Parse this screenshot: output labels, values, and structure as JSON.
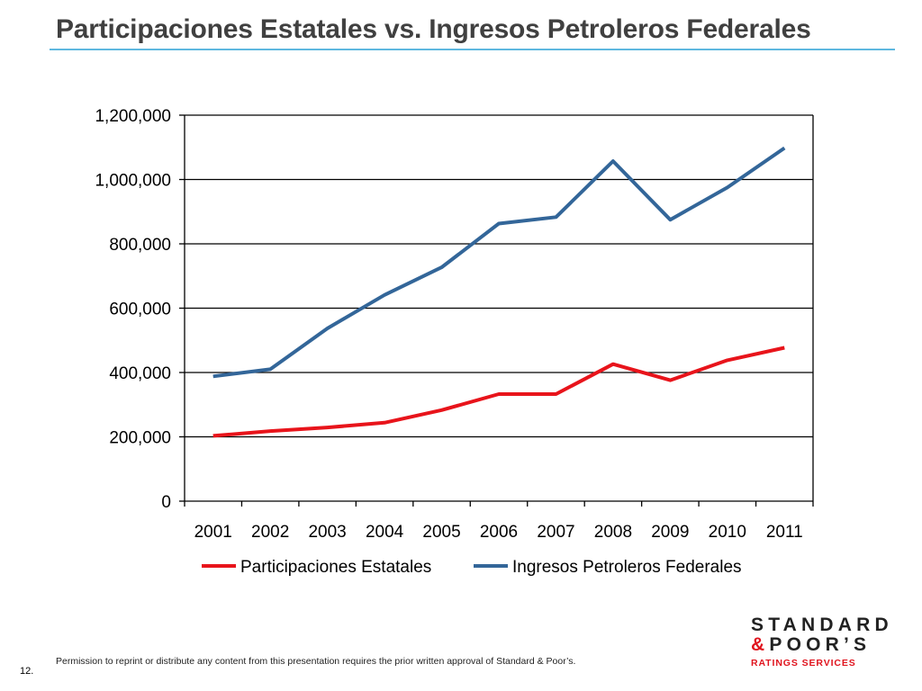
{
  "slide": {
    "title": "Participaciones Estatales vs. Ingresos Petroleros Federales",
    "footer_note": "Permission to reprint or distribute any content from this presentation requires the prior written approval of Standard & Poor’s.",
    "page_number": "12.",
    "accent_color": "#5fb8e0"
  },
  "logo": {
    "line1": "STANDARD",
    "line2": "&POOR’S",
    "line3": "RATINGS SERVICES",
    "colors": {
      "dark": "#222222",
      "red": "#e0141e"
    }
  },
  "chart_data": {
    "type": "line",
    "title": "",
    "xlabel": "",
    "ylabel": "",
    "categories": [
      "2001",
      "2002",
      "2003",
      "2004",
      "2005",
      "2006",
      "2007",
      "2008",
      "2009",
      "2010",
      "2011"
    ],
    "series": [
      {
        "name": "Participaciones Estatales",
        "color": "#e8141b",
        "values": [
          203000,
          218000,
          229000,
          244000,
          283000,
          333000,
          333000,
          426000,
          376000,
          438000,
          477000
        ]
      },
      {
        "name": "Ingresos Petroleros Federales",
        "color": "#336699",
        "values": [
          388000,
          410000,
          537000,
          641000,
          727000,
          863000,
          883000,
          1057000,
          875000,
          975000,
          1098000
        ]
      }
    ],
    "ylim": [
      0,
      1200000
    ],
    "yticks": [
      "0",
      "200,000",
      "400,000",
      "600,000",
      "800,000",
      "1,000,000",
      "1,200,000"
    ],
    "grid": true,
    "legend_position": "bottom"
  }
}
